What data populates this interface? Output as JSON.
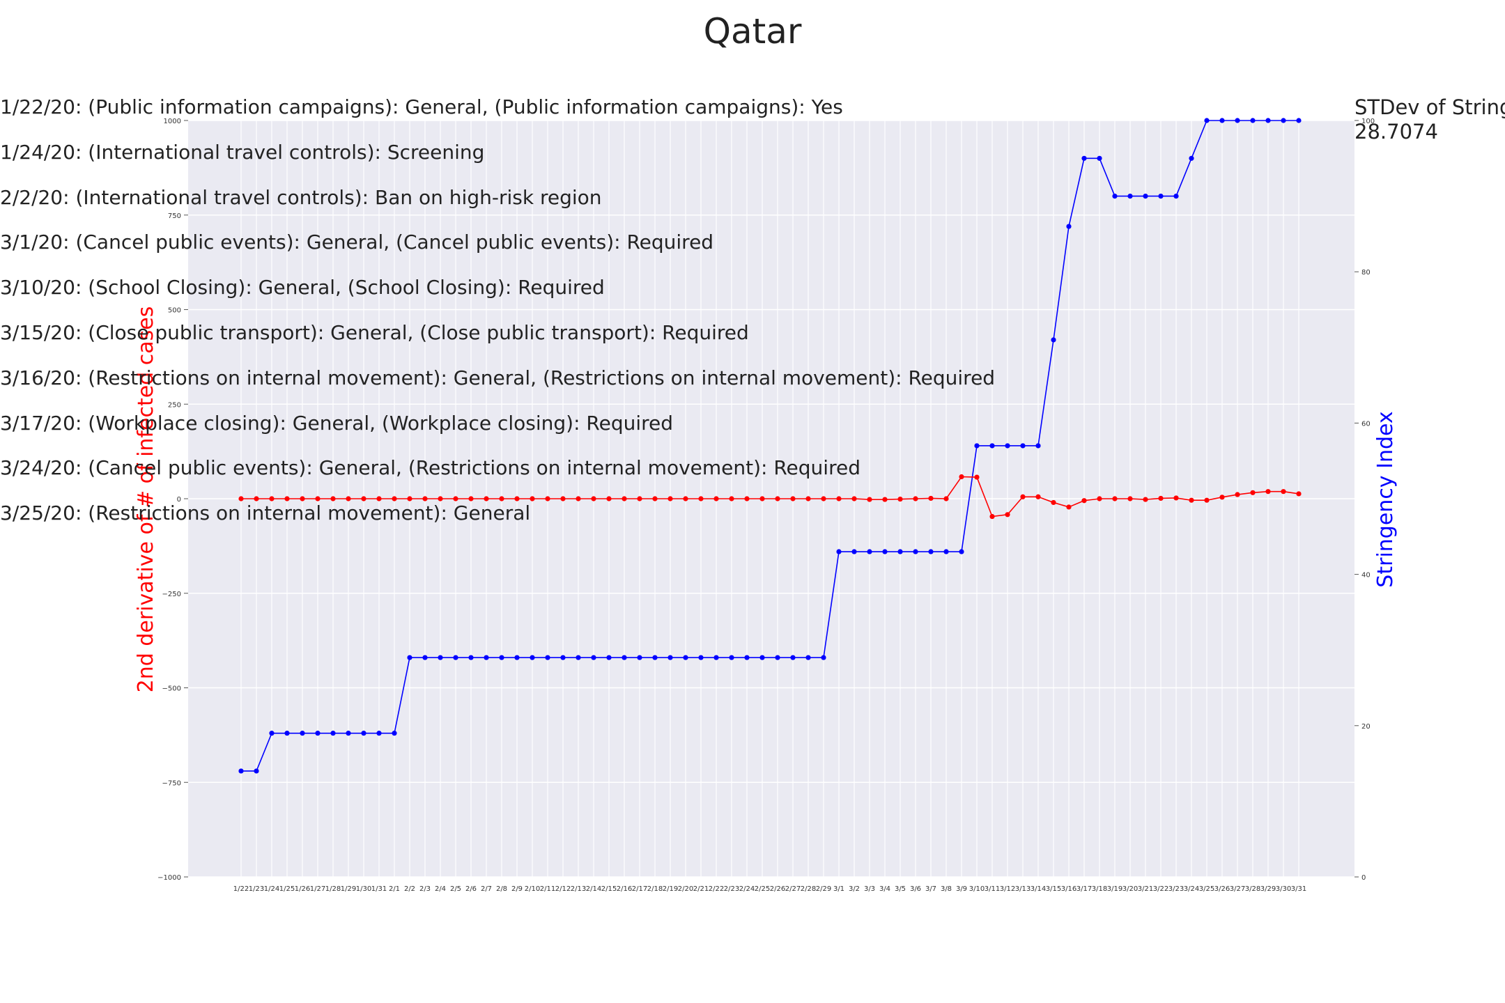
{
  "chart_data": {
    "type": "line",
    "title": "Qatar",
    "ylabel_left": "2nd derivative of # of infected cases",
    "ylabel_right": "Stringency Index",
    "ylim_left": [
      -1000,
      1000
    ],
    "ylim_right": [
      0,
      100
    ],
    "left_ticks": [
      "1000",
      "750",
      "500",
      "250",
      "0",
      "−250",
      "−500",
      "−750",
      "−1000"
    ],
    "right_ticks": [
      "100",
      "80",
      "60",
      "40",
      "20",
      "0"
    ],
    "grid": true,
    "colors": {
      "derivative": "#ff0000",
      "stringency": "#0000ff",
      "plot_bg": "#eaeaf2",
      "grid": "#ffffff"
    },
    "categories": [
      "1/22",
      "1/23",
      "1/24",
      "1/25",
      "1/26",
      "1/27",
      "1/28",
      "1/29",
      "1/30",
      "1/31",
      "2/1",
      "2/2",
      "2/3",
      "2/4",
      "2/5",
      "2/6",
      "2/7",
      "2/8",
      "2/9",
      "2/10",
      "2/11",
      "2/12",
      "2/13",
      "2/14",
      "2/15",
      "2/16",
      "2/17",
      "2/18",
      "2/19",
      "2/20",
      "2/21",
      "2/22",
      "2/23",
      "2/24",
      "2/25",
      "2/26",
      "2/27",
      "2/28",
      "2/29",
      "3/1",
      "3/2",
      "3/3",
      "3/4",
      "3/5",
      "3/6",
      "3/7",
      "3/8",
      "3/9",
      "3/10",
      "3/11",
      "3/12",
      "3/13",
      "3/14",
      "3/15",
      "3/16",
      "3/17",
      "3/18",
      "3/19",
      "3/20",
      "3/21",
      "3/22",
      "3/23",
      "3/24",
      "3/25",
      "3/26",
      "3/27",
      "3/28",
      "3/29",
      "3/30",
      "3/31"
    ],
    "series": [
      {
        "axis": "left",
        "values": [
          0,
          0,
          0,
          0,
          0,
          0,
          0,
          0,
          0,
          0,
          0,
          0,
          0,
          0,
          0,
          0,
          0,
          0,
          0,
          0,
          0,
          0,
          0,
          0,
          0,
          0,
          0,
          0,
          0,
          0,
          0,
          0,
          0,
          0,
          0,
          0,
          0,
          0,
          0,
          0,
          0,
          -2,
          -2,
          -1,
          0,
          1,
          0,
          58,
          57,
          -47,
          -42,
          5,
          5,
          -10,
          -22,
          -5,
          0,
          0,
          0,
          -2,
          1,
          2,
          -4,
          -4,
          4,
          11,
          16,
          19,
          19,
          13
        ]
      },
      {
        "axis": "right",
        "values": [
          14,
          14,
          19,
          19,
          19,
          19,
          19,
          19,
          19,
          19,
          19,
          29,
          29,
          29,
          29,
          29,
          29,
          29,
          29,
          29,
          29,
          29,
          29,
          29,
          29,
          29,
          29,
          29,
          29,
          29,
          29,
          29,
          29,
          29,
          29,
          29,
          29,
          29,
          29,
          43,
          43,
          43,
          43,
          43,
          43,
          43,
          43,
          43,
          57,
          57,
          57,
          57,
          57,
          71,
          86,
          95,
          95,
          90,
          90,
          90,
          90,
          90,
          95,
          100,
          100,
          100,
          100,
          100,
          100,
          100
        ]
      }
    ]
  },
  "policies": [
    "1/22/20: (Public information campaigns): General, (Public information campaigns): Yes",
    "1/24/20: (International travel controls): Screening",
    "2/2/20: (International travel controls): Ban on high-risk region",
    "3/1/20: (Cancel public events): General, (Cancel public events): Required",
    "3/10/20: (School Closing): General, (School Closing): Required",
    "3/15/20: (Close public transport): General, (Close public transport): Required",
    "3/16/20: (Restrictions on internal movement): General, (Restrictions on internal movement): Required",
    "3/17/20: (Workplace closing): General, (Workplace closing): Required",
    "3/24/20: (Cancel public events): General, (Restrictions on internal movement): Required",
    "3/25/20: (Restrictions on internal movement): General"
  ],
  "stdev": {
    "label": "STDev of Stringe",
    "value": "28.7074"
  }
}
